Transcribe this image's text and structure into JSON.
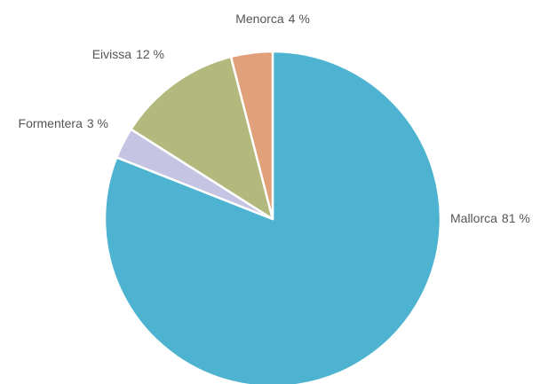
{
  "chart_data": {
    "type": "pie",
    "categories": [
      "Mallorca",
      "Formentera",
      "Eivissa",
      "Menorca"
    ],
    "values": [
      81,
      3,
      12,
      4
    ],
    "value_labels": [
      "81 %",
      "3 %",
      "12 %",
      "4 %"
    ],
    "colors": [
      "#4db3d0",
      "#c5c5e3",
      "#b3b87c",
      "#e0a07a"
    ]
  }
}
